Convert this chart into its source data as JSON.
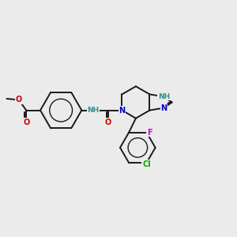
{
  "bg": "#ebebeb",
  "bond_color": "#1a1a1a",
  "bw": 1.4,
  "fs": 7.0,
  "N_blue": "#0000cc",
  "N_teal": "#2f8f8f",
  "O_red": "#cc0000",
  "F_mag": "#cc00cc",
  "Cl_green": "#00aa00",
  "figsize": [
    3.0,
    3.0
  ],
  "dpi": 100,
  "xlim": [
    0,
    10
  ],
  "ylim": [
    0,
    10
  ]
}
